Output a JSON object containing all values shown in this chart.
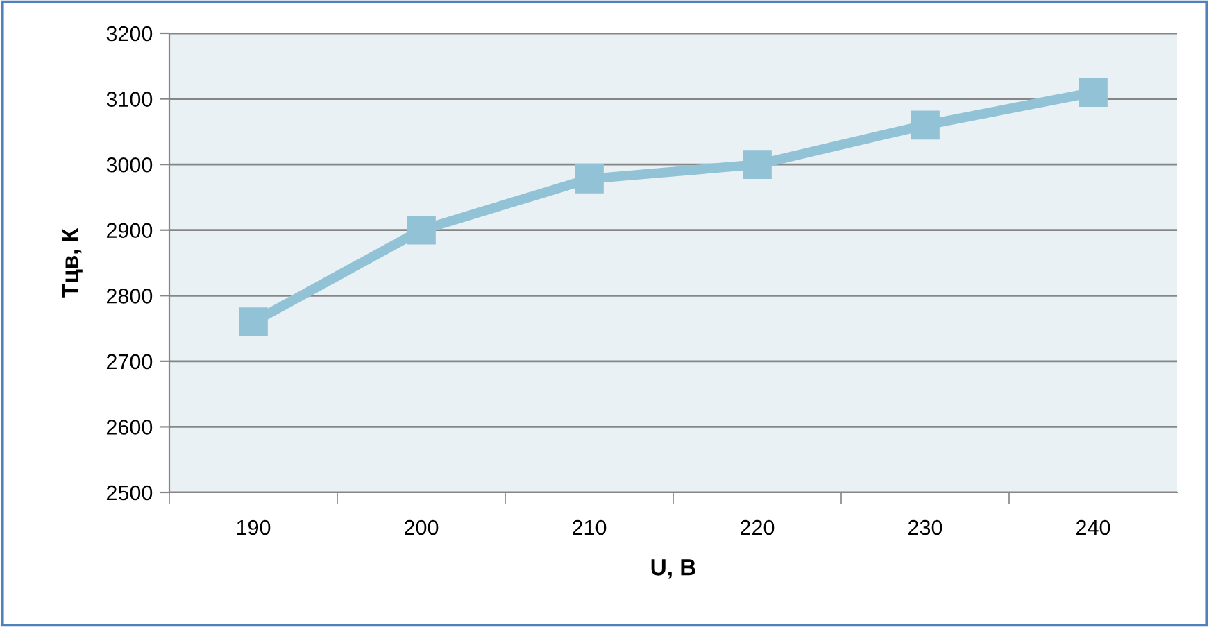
{
  "chart_data": {
    "type": "line",
    "xlabel": "U, В",
    "ylabel": "Тцв, К",
    "categories": [
      "190",
      "200",
      "210",
      "220",
      "230",
      "240"
    ],
    "series": [
      {
        "color": "#92c2d6",
        "values": [
          2760,
          2900,
          2978,
          3000,
          3060,
          3110
        ]
      }
    ],
    "ylim": [
      2500,
      3200
    ],
    "yticks": [
      2500,
      2600,
      2700,
      2800,
      2900,
      3000,
      3100,
      3200
    ],
    "grid": "y",
    "marker": "square",
    "line_style": "solid",
    "legend": false
  }
}
